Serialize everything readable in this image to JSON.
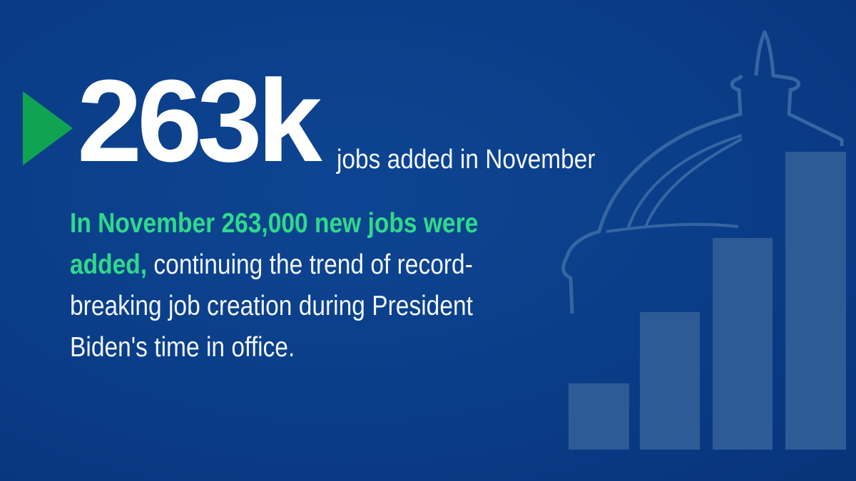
{
  "headline": {
    "figure": "263k",
    "caption": "jobs added in November"
  },
  "body": {
    "highlight_line1": "In November 263,000 new jobs were",
    "highlight_line2": "added,",
    "line2_rest": " continuing the trend of record-",
    "line3": "breaking job creation during President",
    "line4": "Biden's time in office."
  },
  "decor": {
    "icon": "capitol-dome-with-rising-bar-chart",
    "marker_icon": "play-triangle"
  },
  "colors": {
    "background": "#0a3c86",
    "accent_green": "#2fd98a",
    "triangle_green": "#10a352",
    "graphic": "#2e5a96"
  }
}
